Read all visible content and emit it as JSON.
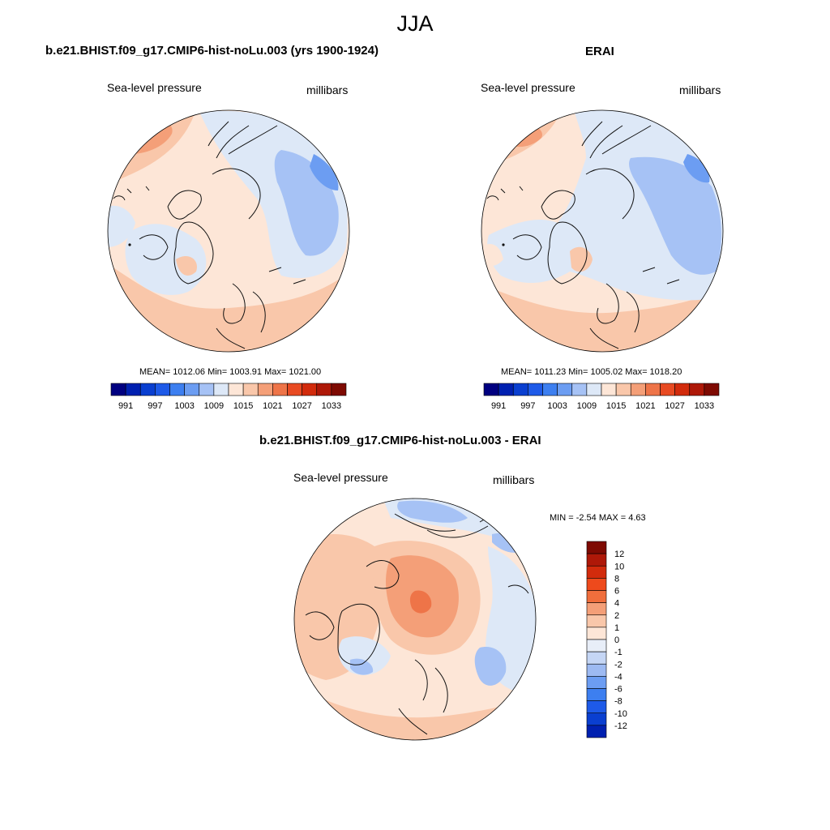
{
  "season": "JJA",
  "panels": [
    {
      "title": "b.e21.BHIST.f09_g17.CMIP6-hist-noLu.003 (yrs 1900-1924)",
      "variable": "Sea-level pressure",
      "units": "millibars",
      "stats": "MEAN= 1012.06  Min= 1003.91  Max= 1021.00"
    },
    {
      "title": "ERAI",
      "variable": "Sea-level pressure",
      "units": "millibars",
      "stats": "MEAN= 1011.23  Min= 1005.02  Max= 1018.20"
    },
    {
      "title": "b.e21.BHIST.f09_g17.CMIP6-hist-noLu.003 - ERAI",
      "variable": "Sea-level pressure",
      "units": "millibars",
      "stats": "MIN =  -2.54 MAX =   4.63"
    }
  ],
  "colorbar_abs": {
    "labels": [
      "991",
      "997",
      "1003",
      "1009",
      "1015",
      "1021",
      "1027",
      "1033"
    ],
    "colors": [
      "#000080",
      "#0020b0",
      "#0a3fd0",
      "#1e5ae8",
      "#3d7ff0",
      "#6c9df2",
      "#a6c2f5",
      "#dde8f7",
      "#fde6d7",
      "#f9c7aa",
      "#f49f78",
      "#ee7448",
      "#e84a22",
      "#d22b0c",
      "#ae1808",
      "#7e0a02"
    ]
  },
  "colorbar_diff": {
    "labels": [
      "12",
      "10",
      "8",
      "6",
      "4",
      "2",
      "1",
      "0",
      "-1",
      "-2",
      "-4",
      "-6",
      "-8",
      "-10",
      "-12"
    ],
    "colors": [
      "#7e0a02",
      "#ae1808",
      "#d22b0c",
      "#ee4a1c",
      "#f06e3c",
      "#f49f78",
      "#f9c7aa",
      "#fde6d7",
      "#e8eef8",
      "#c5d6f5",
      "#9dbaf2",
      "#6c9df2",
      "#3d7ff0",
      "#1e5ae8",
      "#0a3fd0",
      "#0020b0"
    ]
  }
}
